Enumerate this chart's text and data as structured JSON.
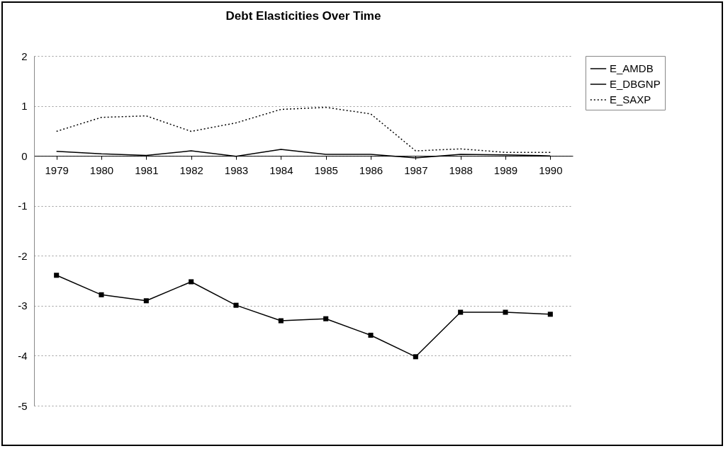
{
  "chart_data": {
    "type": "line",
    "title": "Debt Elasticities Over Time",
    "categories": [
      "1979",
      "1980",
      "1981",
      "1982",
      "1983",
      "1984",
      "1985",
      "1986",
      "1987",
      "1988",
      "1989",
      "1990"
    ],
    "series": [
      {
        "name": "E_AMDB",
        "color": "#000000",
        "line_style": "solid",
        "marker": "none",
        "values": [
          0.09,
          0.04,
          0.01,
          0.1,
          -0.01,
          0.13,
          0.03,
          0.03,
          -0.04,
          0.03,
          0.02,
          0.0
        ]
      },
      {
        "name": "E_DBGNP",
        "color": "#000000",
        "line_style": "solid",
        "marker": "square",
        "values": [
          -2.39,
          -2.78,
          -2.9,
          -2.52,
          -2.99,
          -3.3,
          -3.26,
          -3.59,
          -4.02,
          -3.13,
          -3.13,
          -3.17
        ]
      },
      {
        "name": "E_SAXP",
        "color": "#000000",
        "line_style": "dotted",
        "marker": "none",
        "values": [
          0.49,
          0.77,
          0.8,
          0.49,
          0.66,
          0.93,
          0.97,
          0.84,
          0.1,
          0.14,
          0.07,
          0.07
        ]
      }
    ],
    "ylim": [
      -5,
      2
    ],
    "yticks": [
      -5,
      -4,
      -3,
      -2,
      -1,
      0,
      1,
      2
    ],
    "grid": "y",
    "legend": "right"
  }
}
